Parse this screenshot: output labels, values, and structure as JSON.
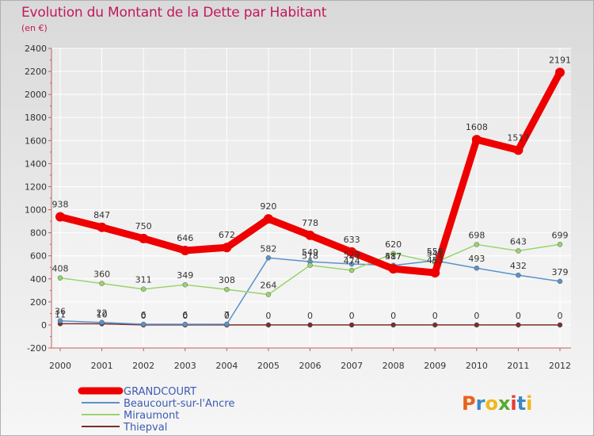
{
  "header": {
    "title": "Evolution du Montant de la Dette par Habitant",
    "subtitle": "(en €)"
  },
  "logo": {
    "text": "Proxiti",
    "letter_colors": [
      "#e8621a",
      "#3d86c6",
      "#f0b81c",
      "#5aa832",
      "#e63b2e",
      "#3d86c6",
      "#f0b81c"
    ]
  },
  "chart_data": {
    "type": "line",
    "title": "Evolution du Montant de la Dette par Habitant",
    "subtitle": "(en €)",
    "xlabel": "",
    "ylabel": "",
    "x": [
      "2000",
      "2001",
      "2002",
      "2003",
      "2004",
      "2005",
      "2006",
      "2007",
      "2008",
      "2009",
      "2010",
      "2011",
      "2012"
    ],
    "ylim": [
      -200,
      2400
    ],
    "yticks": [
      -200,
      0,
      200,
      400,
      600,
      800,
      1000,
      1200,
      1400,
      1600,
      1800,
      2000,
      2200,
      2400
    ],
    "grid": true,
    "legend_position": "bottom-left",
    "series": [
      {
        "name": "GRANDCOURT",
        "color": "#ee0000",
        "values": [
          938,
          847,
          750,
          646,
          672,
          920,
          778,
          633,
          487,
          453,
          1608,
          1517,
          2191
        ],
        "labels": [
          "938",
          "847",
          "750",
          "646",
          "672",
          "920",
          "778",
          "633",
          "487",
          "453",
          "1608",
          "1517",
          "2191"
        ]
      },
      {
        "name": "Beaucourt-sur-l'Ancre",
        "color": "#5b92c9",
        "values": [
          36,
          22,
          6,
          6,
          7,
          582,
          549,
          529,
          517,
          558,
          493,
          432,
          379
        ],
        "labels": [
          "36",
          "22",
          "6",
          "6",
          "7",
          "582",
          "549",
          "529",
          "517",
          "558",
          "493",
          "432",
          "379"
        ]
      },
      {
        "name": "Miraumont",
        "color": "#99d46c",
        "values": [
          408,
          360,
          311,
          349,
          308,
          264,
          518,
          474,
          620,
          541,
          698,
          643,
          699
        ],
        "labels": [
          "408",
          "360",
          "311",
          "349",
          "308",
          "264",
          "518",
          "474",
          "620",
          "541",
          "698",
          "643",
          "699"
        ]
      },
      {
        "name": "Thiepval",
        "color": "#7a2e2e",
        "values": [
          11,
          10,
          0,
          0,
          0,
          0,
          0,
          0,
          0,
          0,
          0,
          0,
          0
        ],
        "labels": [
          "11",
          "10",
          "0",
          "0",
          "0",
          "0",
          "0",
          "0",
          "0",
          "0",
          "0",
          "0",
          "0"
        ]
      }
    ]
  }
}
